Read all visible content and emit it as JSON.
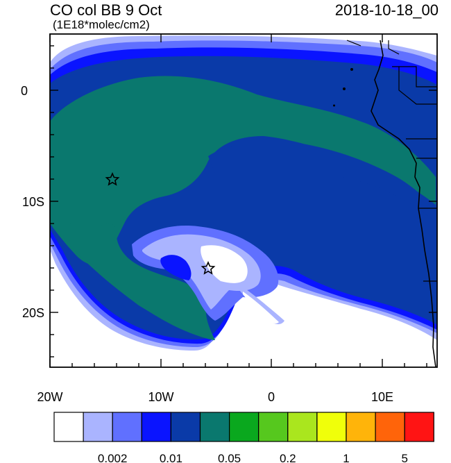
{
  "title": "CO col BB 9 Oct",
  "date": "2018-10-18_00",
  "units": "(1E18*molec/cm2)",
  "axes": {
    "x_ticks": [
      "20W",
      "10W",
      "0",
      "10E"
    ],
    "y_ticks": [
      "0",
      "10S",
      "20S"
    ]
  },
  "colorbar": {
    "colors": [
      "#ffffff",
      "#aab4ff",
      "#6070ff",
      "#0a14ff",
      "#0a3aa8",
      "#0a786e",
      "#0aa81e",
      "#56c81e",
      "#aae61e",
      "#f0ff0a",
      "#ffb40a",
      "#ff640a",
      "#ff1414"
    ],
    "labels": [
      "0.002",
      "0.01",
      "0.05",
      "0.2",
      "1",
      "5"
    ]
  },
  "markers": [
    {
      "name": "star-marker-north",
      "symbol": "star"
    },
    {
      "name": "star-marker-south",
      "symbol": "star"
    }
  ]
}
